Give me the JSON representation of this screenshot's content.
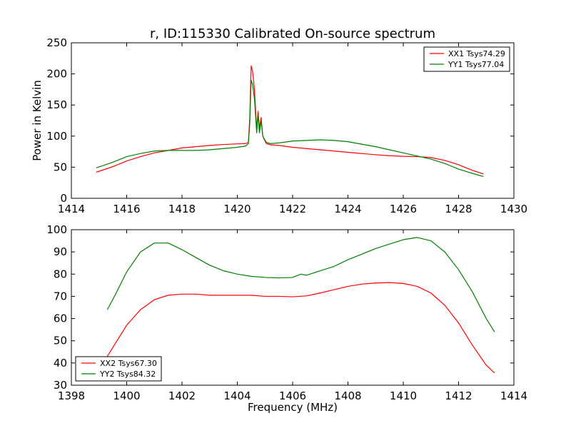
{
  "figure_title": "r, ID:115330 Calibrated On-source spectrum",
  "chart_data": [
    {
      "type": "line",
      "title": "r, ID:115330 Calibrated On-source spectrum",
      "xlabel": "",
      "ylabel": "Power in Kelvin",
      "xlim": [
        1414,
        1430
      ],
      "ylim": [
        0,
        250
      ],
      "xticks": [
        1414,
        1416,
        1418,
        1420,
        1422,
        1424,
        1426,
        1428,
        1430
      ],
      "yticks": [
        0,
        50,
        100,
        150,
        200,
        250
      ],
      "grid": false,
      "legend_position": "top-right",
      "series": [
        {
          "name": "XX1 Tsys74.29",
          "color": "#ff0000",
          "x": [
            1414.9,
            1415.5,
            1416.0,
            1416.5,
            1417.0,
            1417.5,
            1418.0,
            1418.5,
            1419.0,
            1419.5,
            1420.0,
            1420.3,
            1420.4,
            1420.45,
            1420.5,
            1420.55,
            1420.62,
            1420.7,
            1420.75,
            1420.8,
            1420.86,
            1420.92,
            1420.97,
            1421.05,
            1421.2,
            1421.5,
            1422.0,
            1422.5,
            1423.0,
            1423.5,
            1424.0,
            1424.5,
            1425.0,
            1425.5,
            1426.0,
            1426.5,
            1427.0,
            1427.5,
            1428.0,
            1428.5,
            1428.9
          ],
          "y": [
            42,
            51,
            60,
            67,
            73,
            77,
            81,
            83,
            85,
            86.5,
            87.5,
            88,
            90,
            130,
            213,
            205,
            175,
            110,
            140,
            112,
            130,
            100,
            95,
            88,
            86,
            85,
            82,
            80,
            78,
            76,
            74,
            72,
            70,
            68.5,
            67.5,
            67,
            65.5,
            61,
            54,
            45,
            39
          ]
        },
        {
          "name": "YY1 Tsys77.04",
          "color": "#008000",
          "x": [
            1414.9,
            1415.5,
            1416.0,
            1416.5,
            1417.0,
            1417.5,
            1418.0,
            1418.5,
            1419.0,
            1419.5,
            1420.0,
            1420.3,
            1420.4,
            1420.45,
            1420.5,
            1420.55,
            1420.62,
            1420.7,
            1420.75,
            1420.8,
            1420.86,
            1420.92,
            1420.97,
            1421.05,
            1421.2,
            1421.5,
            1422.0,
            1422.5,
            1423.0,
            1423.5,
            1424.0,
            1424.5,
            1425.0,
            1425.5,
            1426.0,
            1426.5,
            1427.0,
            1427.5,
            1428.0,
            1428.5,
            1428.9
          ],
          "y": [
            49,
            58,
            67,
            72,
            76,
            77,
            77,
            77,
            78,
            80,
            82,
            84,
            88,
            120,
            190,
            183,
            160,
            105,
            135,
            105,
            125,
            100,
            96,
            90,
            88,
            89,
            92,
            93,
            94,
            93,
            91,
            87,
            83,
            78,
            73,
            68,
            63,
            56,
            47,
            40,
            35
          ]
        }
      ]
    },
    {
      "type": "line",
      "title": "",
      "xlabel": "Frequency (MHz)",
      "ylabel": "",
      "xlim": [
        1398,
        1414
      ],
      "ylim": [
        30,
        100
      ],
      "xticks": [
        1398,
        1400,
        1402,
        1404,
        1406,
        1408,
        1410,
        1412,
        1414
      ],
      "yticks": [
        30,
        40,
        50,
        60,
        70,
        80,
        90,
        100
      ],
      "grid": false,
      "legend_position": "bottom-left",
      "series": [
        {
          "name": "XX2 Tsys67.30",
          "color": "#ff0000",
          "x": [
            1399.3,
            1399.6,
            1400.0,
            1400.5,
            1401.0,
            1401.5,
            1402.0,
            1402.5,
            1403.0,
            1403.5,
            1404.0,
            1404.5,
            1405.0,
            1405.5,
            1406.0,
            1406.5,
            1407.0,
            1407.5,
            1408.0,
            1408.5,
            1409.0,
            1409.5,
            1410.0,
            1410.5,
            1411.0,
            1411.5,
            1412.0,
            1412.5,
            1413.0,
            1413.3
          ],
          "y": [
            43,
            49,
            57,
            64,
            68.5,
            70.5,
            71,
            71,
            70.5,
            70.5,
            70.5,
            70.5,
            70,
            70,
            69.8,
            70.2,
            71.5,
            73,
            74.5,
            75.5,
            76,
            76.2,
            75.8,
            74.5,
            71.5,
            66,
            58,
            48,
            39,
            35.5
          ]
        },
        {
          "name": "YY2 Tsys84.32",
          "color": "#008000",
          "x": [
            1399.3,
            1399.6,
            1400.0,
            1400.5,
            1401.0,
            1401.5,
            1402.0,
            1402.5,
            1403.0,
            1403.5,
            1404.0,
            1404.5,
            1405.0,
            1405.5,
            1406.0,
            1406.3,
            1406.5,
            1407.0,
            1407.5,
            1408.0,
            1408.5,
            1409.0,
            1409.5,
            1410.0,
            1410.5,
            1411.0,
            1411.5,
            1412.0,
            1412.5,
            1413.0,
            1413.3
          ],
          "y": [
            64,
            71,
            81,
            90,
            94,
            94,
            91,
            87.5,
            84,
            81.5,
            80,
            79,
            78.5,
            78.3,
            78.5,
            80,
            79.5,
            81.5,
            83.5,
            86.5,
            89,
            91.5,
            93.5,
            95.5,
            96.5,
            95,
            90,
            82,
            72,
            60,
            54
          ]
        }
      ]
    }
  ]
}
